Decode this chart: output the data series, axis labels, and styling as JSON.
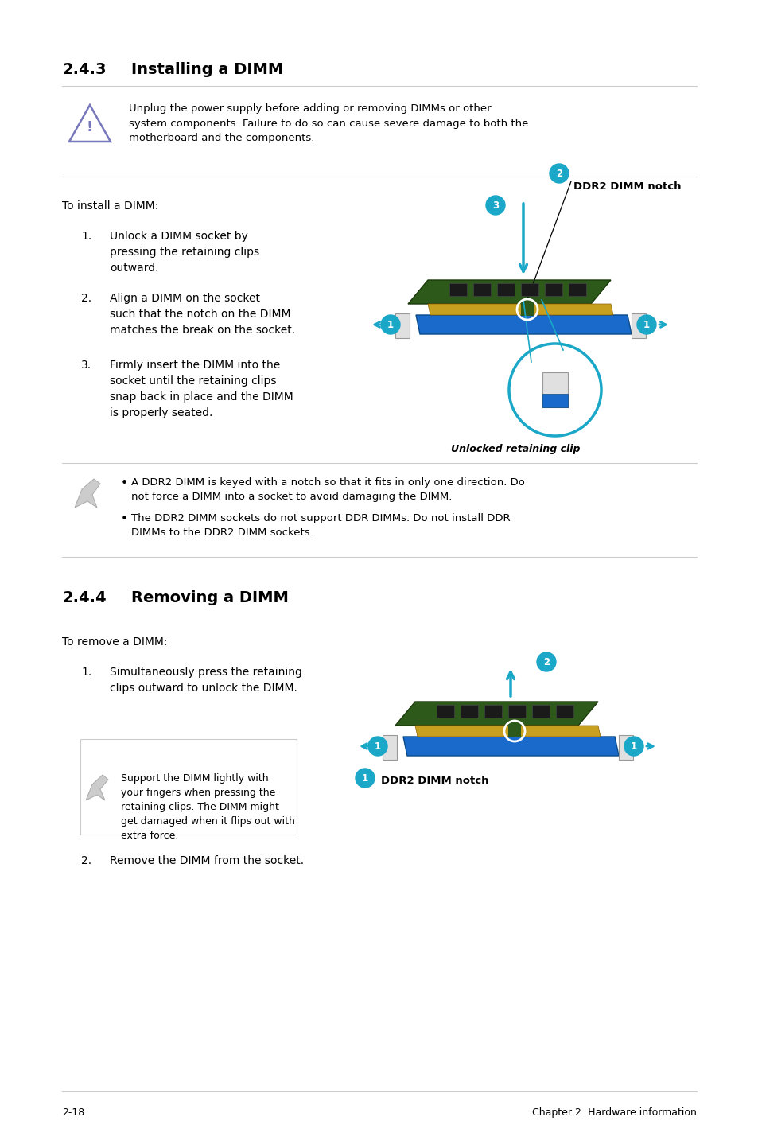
{
  "bg_color": "#ffffff",
  "section243_title": "2.4.3",
  "section243_heading": "Installing a DIMM",
  "section244_title": "2.4.4",
  "section244_heading": "Removing a DIMM",
  "warning_text": "Unplug the power supply before adding or removing DIMMs or other\nsystem components. Failure to do so can cause severe damage to both the\nmotherboard and the components.",
  "install_intro": "To install a DIMM:",
  "install_steps": [
    "Unlock a DIMM socket by\npressing the retaining clips\noutward.",
    "Align a DIMM on the socket\nsuch that the notch on the DIMM\nmatches the break on the socket.",
    "Firmly insert the DIMM into the\nsocket until the retaining clips\nsnap back in place and the DIMM\nis properly seated."
  ],
  "ddr2_notch_label": "DDR2 DIMM notch",
  "unlocked_clip_label": "Unlocked retaining clip",
  "note1": "A DDR2 DIMM is keyed with a notch so that it fits in only one direction. Do\nnot force a DIMM into a socket to avoid damaging the DIMM.",
  "note2": "The DDR2 DIMM sockets do not support DDR DIMMs. Do not install DDR\nDIMMs to the DDR2 DIMM sockets.",
  "remove_intro": "To remove a DIMM:",
  "remove_step1": "Simultaneously press the retaining\nclips outward to unlock the DIMM.",
  "remove_step2": "Remove the DIMM from the socket.",
  "support_note": "Support the DIMM lightly with\nyour fingers when pressing the\nretaining clips. The DIMM might\nget damaged when it flips out with\nextra force.",
  "ddr2_notch_label2": "DDR2 DIMM notch",
  "footer_left": "2-18",
  "footer_right": "Chapter 2: Hardware information",
  "cyan_color": "#1aa7c8",
  "line_color": "#cccccc",
  "text_color": "#000000",
  "heading_color": "#000000",
  "pcb_color": "#2d5a1b",
  "socket_color": "#1a6acc",
  "gold_color": "#c8a020",
  "chip_color": "#1a1a1a",
  "clip_color": "#e0e0e0",
  "tri_color": "#7777bb"
}
